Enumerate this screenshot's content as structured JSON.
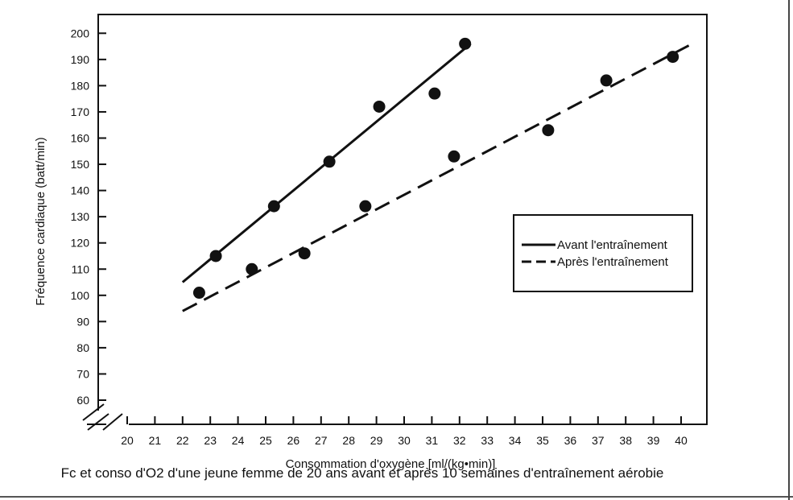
{
  "caption": "Fc et conso d'O2 d'une jeune femme de 20 ans avant et après 10 semaines d'entraînement aérobie",
  "chart_data": {
    "type": "scatter",
    "title": "",
    "xlabel": "Consommation d'oxygène [ml/(kg•min)]",
    "ylabel": "Fréquence cardiaque (batt/min)",
    "xlim": [
      20,
      40
    ],
    "ylim": [
      60,
      200
    ],
    "x_ticks": [
      20,
      21,
      22,
      23,
      24,
      25,
      26,
      27,
      28,
      29,
      30,
      31,
      32,
      33,
      34,
      35,
      36,
      37,
      38,
      39,
      40
    ],
    "y_ticks": [
      60,
      70,
      80,
      90,
      100,
      110,
      120,
      130,
      140,
      150,
      160,
      170,
      180,
      190,
      200
    ],
    "axis_break": true,
    "grid": false,
    "legend_position": "right",
    "series": [
      {
        "name": "Avant l'entraînement",
        "line_style": "solid",
        "points": [
          {
            "x": 23.2,
            "y": 115
          },
          {
            "x": 25.3,
            "y": 134
          },
          {
            "x": 27.3,
            "y": 151
          },
          {
            "x": 29.1,
            "y": 172
          },
          {
            "x": 31.1,
            "y": 177
          },
          {
            "x": 32.2,
            "y": 196
          }
        ],
        "fit_line": [
          {
            "x": 22.0,
            "y": 105
          },
          {
            "x": 32.4,
            "y": 196
          }
        ]
      },
      {
        "name": "Après l'entraînement",
        "line_style": "dashed",
        "points": [
          {
            "x": 22.6,
            "y": 101
          },
          {
            "x": 24.5,
            "y": 110
          },
          {
            "x": 26.4,
            "y": 116
          },
          {
            "x": 28.6,
            "y": 134
          },
          {
            "x": 31.8,
            "y": 153
          },
          {
            "x": 35.2,
            "y": 163
          },
          {
            "x": 37.3,
            "y": 182
          },
          {
            "x": 39.7,
            "y": 191
          }
        ],
        "fit_line": [
          {
            "x": 22.0,
            "y": 94
          },
          {
            "x": 40.4,
            "y": 196
          }
        ]
      }
    ]
  }
}
